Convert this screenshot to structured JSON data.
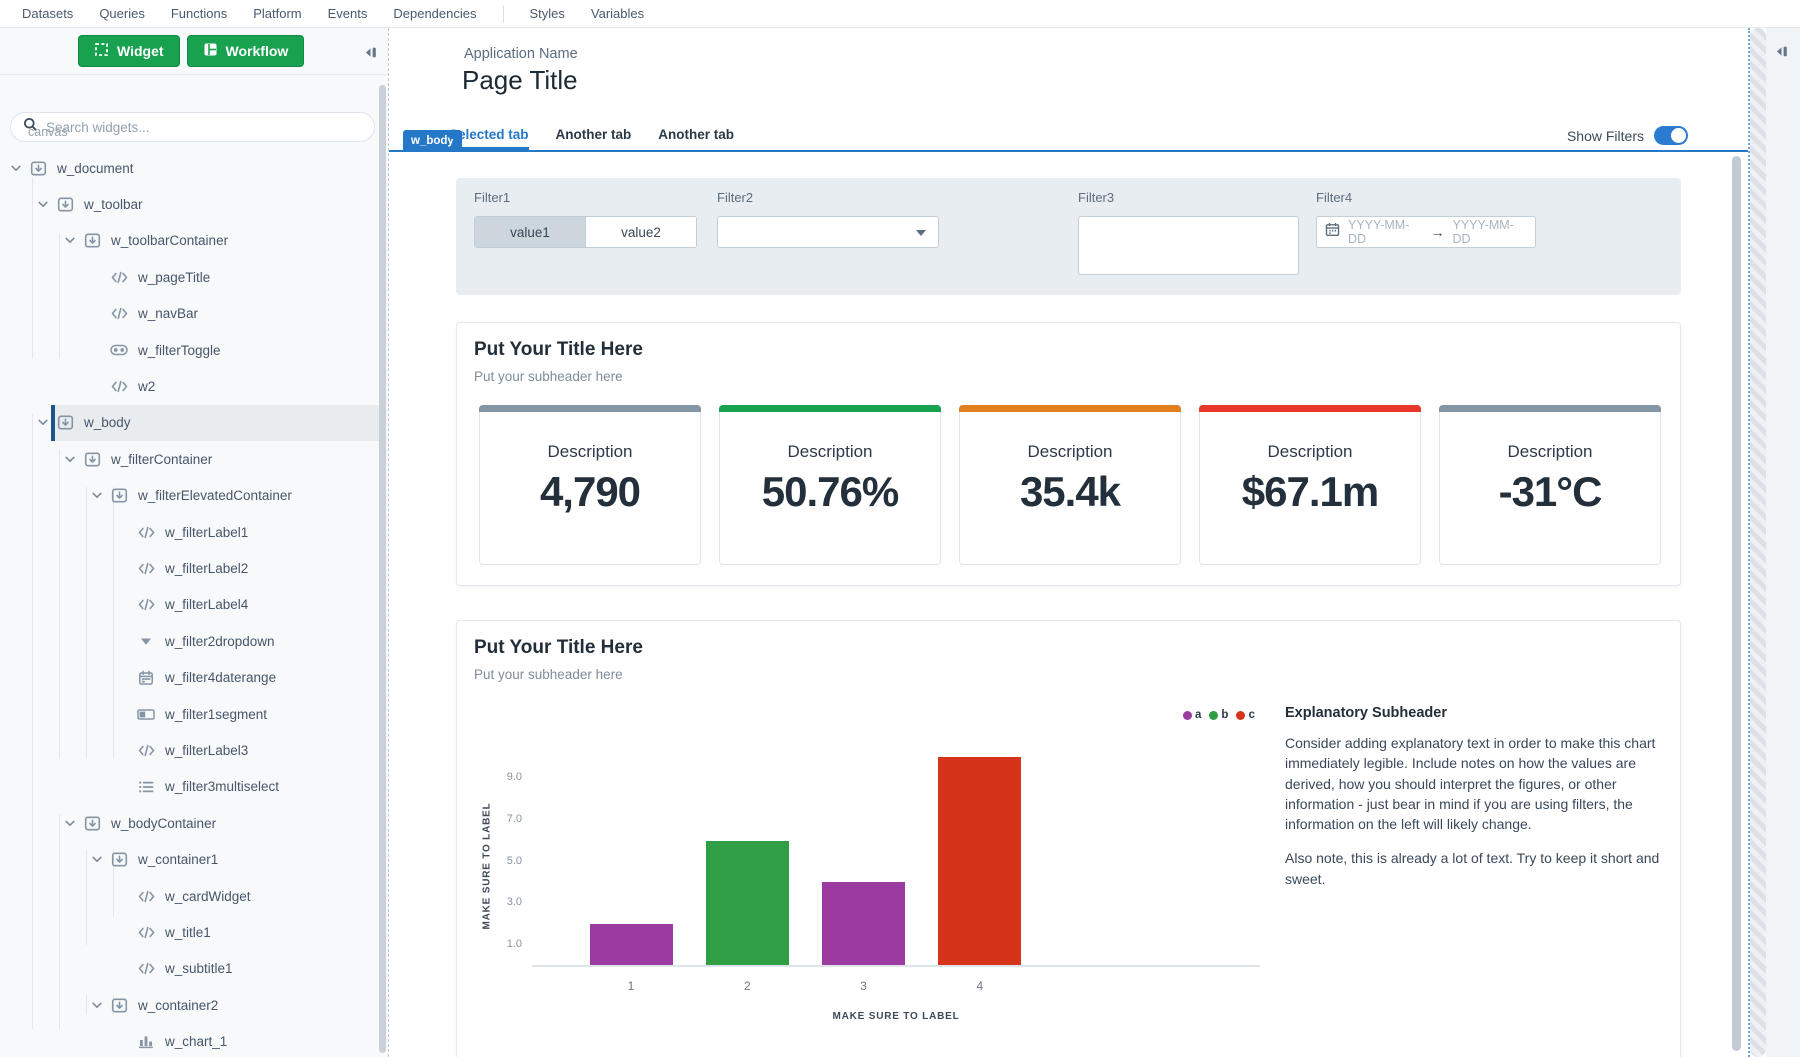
{
  "menu": {
    "items": [
      "Datasets",
      "Queries",
      "Functions",
      "Platform",
      "Events",
      "Dependencies",
      "Styles",
      "Variables"
    ],
    "divider_before": "Styles"
  },
  "sidebar": {
    "widget_button": "Widget",
    "workflow_button": "Workflow",
    "search_placeholder": "Search widgets...",
    "section_label": "canvas",
    "tree": [
      {
        "label": "w_document",
        "depth": 0,
        "icon": "container",
        "expandable": true
      },
      {
        "label": "w_toolbar",
        "depth": 1,
        "icon": "container",
        "expandable": true
      },
      {
        "label": "w_toolbarContainer",
        "depth": 2,
        "icon": "container",
        "expandable": true
      },
      {
        "label": "w_pageTitle",
        "depth": 3,
        "icon": "code"
      },
      {
        "label": "w_navBar",
        "depth": 3,
        "icon": "code"
      },
      {
        "label": "w_filterToggle",
        "depth": 3,
        "icon": "toggle"
      },
      {
        "label": "w2",
        "depth": 3,
        "icon": "code"
      },
      {
        "label": "w_body",
        "depth": 1,
        "icon": "container",
        "expandable": true,
        "selected": true
      },
      {
        "label": "w_filterContainer",
        "depth": 2,
        "icon": "container",
        "expandable": true
      },
      {
        "label": "w_filterElevatedContainer",
        "depth": 3,
        "icon": "container",
        "expandable": true
      },
      {
        "label": "w_filterLabel1",
        "depth": 4,
        "icon": "code"
      },
      {
        "label": "w_filterLabel2",
        "depth": 4,
        "icon": "code"
      },
      {
        "label": "w_filterLabel4",
        "depth": 4,
        "icon": "code"
      },
      {
        "label": "w_filter2dropdown",
        "depth": 4,
        "icon": "dropdown"
      },
      {
        "label": "w_filter4daterange",
        "depth": 4,
        "icon": "calendar"
      },
      {
        "label": "w_filter1segment",
        "depth": 4,
        "icon": "segment"
      },
      {
        "label": "w_filterLabel3",
        "depth": 4,
        "icon": "code"
      },
      {
        "label": "w_filter3multiselect",
        "depth": 4,
        "icon": "multiselect"
      },
      {
        "label": "w_bodyContainer",
        "depth": 2,
        "icon": "container",
        "expandable": true
      },
      {
        "label": "w_container1",
        "depth": 3,
        "icon": "container",
        "expandable": true
      },
      {
        "label": "w_cardWidget",
        "depth": 4,
        "icon": "code"
      },
      {
        "label": "w_title1",
        "depth": 4,
        "icon": "code"
      },
      {
        "label": "w_subtitle1",
        "depth": 4,
        "icon": "code"
      },
      {
        "label": "w_container2",
        "depth": 3,
        "icon": "container",
        "expandable": true
      },
      {
        "label": "w_chart_1",
        "depth": 4,
        "icon": "chart"
      }
    ]
  },
  "canvas": {
    "app_name": "Application Name",
    "page_title": "Page Title",
    "selected_widget_tag": "w_body",
    "tabs": [
      {
        "label": "Selected tab",
        "active": true
      },
      {
        "label": "Another tab",
        "active": false
      },
      {
        "label": "Another tab",
        "active": false
      }
    ],
    "show_filters": {
      "label": "Show Filters",
      "on": true
    },
    "filters": {
      "filter1": {
        "label": "Filter1",
        "type": "segmented",
        "options": [
          "value1",
          "value2"
        ],
        "selected": "value1"
      },
      "filter2": {
        "label": "Filter2",
        "type": "dropdown",
        "value": ""
      },
      "filter3": {
        "label": "Filter3",
        "type": "multiselect",
        "value": ""
      },
      "filter4": {
        "label": "Filter4",
        "type": "daterange",
        "start_placeholder": "YYYY-MM-DD",
        "end_placeholder": "YYYY-MM-DD",
        "arrow": "→"
      }
    },
    "kpi_section": {
      "title": "Put Your Title Here",
      "subtitle": "Put your subheader here",
      "cards": [
        {
          "label": "Description",
          "value": "4,790",
          "accent_color": "#8496a5"
        },
        {
          "label": "Description",
          "value": "50.76%",
          "accent_color": "#18a14f"
        },
        {
          "label": "Description",
          "value": "35.4k",
          "accent_color": "#e0801f"
        },
        {
          "label": "Description",
          "value": "$67.1m",
          "accent_color": "#e8362b"
        },
        {
          "label": "Description",
          "value": "-31°C",
          "accent_color": "#8496a5"
        }
      ]
    },
    "chart_section": {
      "title": "Put Your Title Here",
      "subtitle": "Put your subheader here",
      "explanation_heading": "Explanatory Subheader",
      "explanation_paragraphs": [
        "Consider adding explanatory text in order to make this chart immediately legible. Include notes on how the values are derived, how you should interpret the figures, or other information - just bear in mind if you are using filters, the information on the left will likely change.",
        "Also note, this is already a lot of text. Try to keep it short and sweet."
      ]
    }
  },
  "chart_data": {
    "type": "bar",
    "categories": [
      "1",
      "2",
      "3",
      "4"
    ],
    "values": [
      2,
      6,
      4,
      10
    ],
    "bar_colors": [
      "#9b3b9f",
      "#2f9e44",
      "#9b3b9f",
      "#d5341b"
    ],
    "legend": [
      {
        "name": "a",
        "color": "#9b3b9f"
      },
      {
        "name": "b",
        "color": "#2f9e44"
      },
      {
        "name": "c",
        "color": "#d5341b"
      }
    ],
    "xlabel": "MAKE SURE TO LABEL",
    "ylabel": "MAKE SURE TO LABEL",
    "yticks": [
      1.0,
      3.0,
      5.0,
      7.0,
      9.0
    ],
    "ytick_labels": [
      "1.0",
      "3.0",
      "5.0",
      "7.0",
      "9.0"
    ],
    "ylim": [
      0,
      10.5
    ],
    "grid": false,
    "legend_position": "top-right"
  }
}
